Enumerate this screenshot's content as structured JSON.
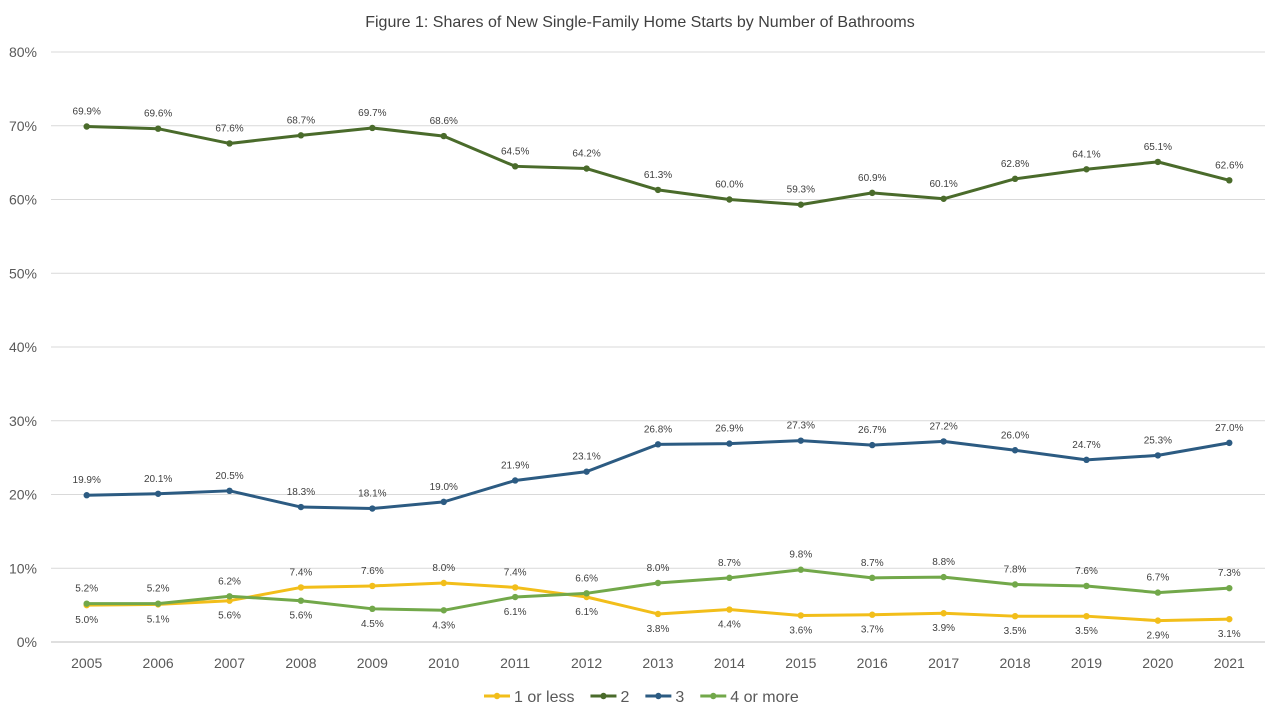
{
  "chart_data": {
    "type": "line",
    "title": "Figure 1: Shares of New Single-Family Home Starts by Number of Bathrooms",
    "xlabel": "",
    "ylabel": "",
    "x": [
      "2005",
      "2006",
      "2007",
      "2008",
      "2009",
      "2010",
      "2011",
      "2012",
      "2013",
      "2014",
      "2015",
      "2016",
      "2017",
      "2018",
      "2019",
      "2020",
      "2021"
    ],
    "ylim": [
      0,
      80
    ],
    "yticks": [
      0,
      10,
      20,
      30,
      40,
      50,
      60,
      70,
      80
    ],
    "ytick_labels": [
      "0%",
      "10%",
      "20%",
      "30%",
      "40%",
      "50%",
      "60%",
      "70%",
      "80%"
    ],
    "grid": true,
    "legend_position": "bottom",
    "series": [
      {
        "name": "1 or less",
        "color": "#F2BE1A",
        "values": [
          5.0,
          5.1,
          5.6,
          7.4,
          7.6,
          8.0,
          7.4,
          6.1,
          3.8,
          4.4,
          3.6,
          3.7,
          3.9,
          3.5,
          3.5,
          2.9,
          3.1
        ],
        "labels": [
          "5.0%",
          "5.1%",
          "5.6%",
          "7.4%",
          "7.6%",
          "8.0%",
          "7.4%",
          "6.1%",
          "3.8%",
          "4.4%",
          "3.6%",
          "3.7%",
          "3.9%",
          "3.5%",
          "3.5%",
          "2.9%",
          "3.1%"
        ]
      },
      {
        "name": "2",
        "color": "#4A6B2B",
        "values": [
          69.9,
          69.6,
          67.6,
          68.7,
          69.7,
          68.6,
          64.5,
          64.2,
          61.3,
          60.0,
          59.3,
          60.9,
          60.1,
          62.8,
          64.1,
          65.1,
          62.6
        ],
        "labels": [
          "69.9%",
          "69.6%",
          "67.6%",
          "68.7%",
          "69.7%",
          "68.6%",
          "64.5%",
          "64.2%",
          "61.3%",
          "60.0%",
          "59.3%",
          "60.9%",
          "60.1%",
          "62.8%",
          "64.1%",
          "65.1%",
          "62.6%"
        ]
      },
      {
        "name": "3",
        "color": "#2C5B82",
        "values": [
          19.9,
          20.1,
          20.5,
          18.3,
          18.1,
          19.0,
          21.9,
          23.1,
          26.8,
          26.9,
          27.3,
          26.7,
          27.2,
          26.0,
          24.7,
          25.3,
          27.0
        ],
        "labels": [
          "19.9%",
          "20.1%",
          "20.5%",
          "18.3%",
          "18.1%",
          "19.0%",
          "21.9%",
          "23.1%",
          "26.8%",
          "26.9%",
          "27.3%",
          "26.7%",
          "27.2%",
          "26.0%",
          "24.7%",
          "25.3%",
          "27.0%"
        ]
      },
      {
        "name": "4 or more",
        "color": "#72A84A",
        "values": [
          5.2,
          5.2,
          6.2,
          5.6,
          4.5,
          4.3,
          6.1,
          6.6,
          8.0,
          8.7,
          9.8,
          8.7,
          8.8,
          7.8,
          7.6,
          6.7,
          7.3
        ],
        "labels": [
          "5.2%",
          "5.2%",
          "6.2%",
          "5.6%",
          "4.5%",
          "4.3%",
          "6.1%",
          "6.6%",
          "8.0%",
          "8.7%",
          "9.8%",
          "8.7%",
          "8.8%",
          "7.8%",
          "7.6%",
          "6.7%",
          "7.3%"
        ]
      }
    ]
  }
}
